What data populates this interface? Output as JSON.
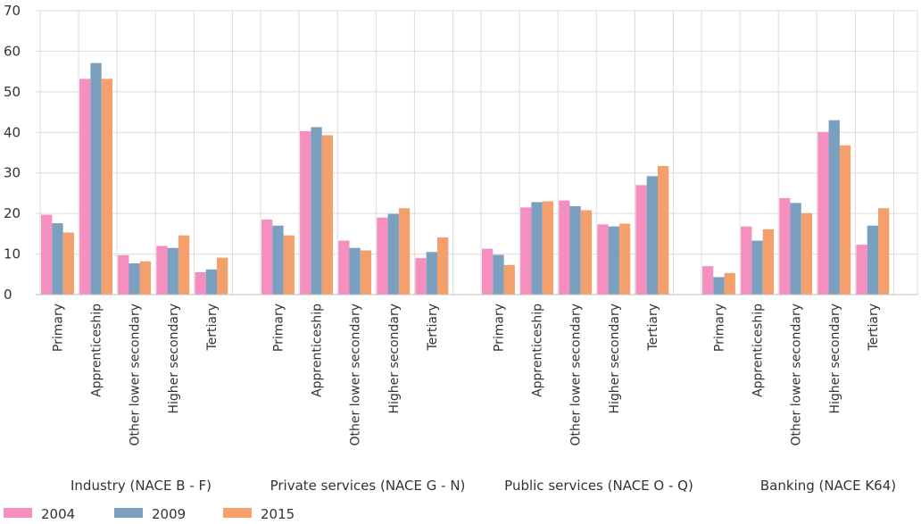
{
  "chart_data": {
    "type": "bar",
    "title": "",
    "xlabel": "",
    "ylabel": "",
    "ylim": [
      0,
      70
    ],
    "yticks": [
      0,
      10,
      20,
      30,
      40,
      50,
      60,
      70
    ],
    "grid": true,
    "legend_position": "bottom-left",
    "groups": [
      "Industry (NACE B - F)",
      "Private services (NACE G - N)",
      "Public services (NACE O - Q)",
      "Banking (NACE K64)"
    ],
    "categories": [
      "Primary",
      "Apprenticeship",
      "Other lower secondary",
      "Higher secondary",
      "Tertiary"
    ],
    "series": [
      {
        "name": "2004",
        "color": "#f48fc0",
        "values": [
          [
            19.7,
            53.2,
            9.7,
            12.0,
            5.5
          ],
          [
            18.5,
            40.3,
            13.3,
            19.0,
            9.0
          ],
          [
            11.3,
            21.5,
            23.2,
            17.3,
            27.0
          ],
          [
            7.0,
            16.8,
            23.8,
            40.1,
            12.3
          ]
        ]
      },
      {
        "name": "2009",
        "color": "#7b9fbe",
        "values": [
          [
            17.6,
            57.1,
            7.7,
            11.5,
            6.2
          ],
          [
            17.0,
            41.3,
            11.5,
            19.9,
            10.5
          ],
          [
            9.8,
            22.8,
            21.8,
            16.8,
            29.2
          ],
          [
            4.3,
            13.3,
            22.6,
            43.0,
            17.0
          ]
        ]
      },
      {
        "name": "2015",
        "color": "#f4a06d",
        "values": [
          [
            15.3,
            53.2,
            8.2,
            14.6,
            9.1
          ],
          [
            14.6,
            39.3,
            10.9,
            21.3,
            14.1
          ],
          [
            7.3,
            23.0,
            20.8,
            17.5,
            31.7
          ],
          [
            5.3,
            16.1,
            20.1,
            36.8,
            21.3
          ]
        ]
      }
    ]
  }
}
